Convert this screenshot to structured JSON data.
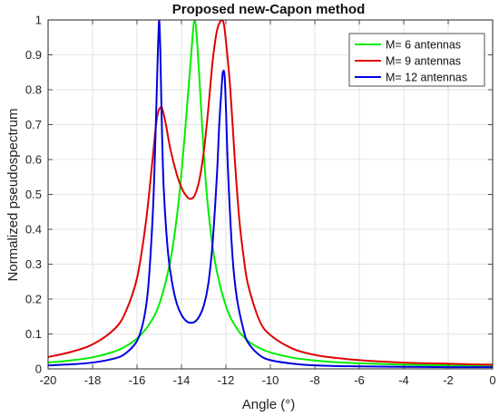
{
  "chart_data": {
    "type": "line",
    "title": "Proposed new-Capon method",
    "xlabel": "Angle (°)",
    "ylabel": "Normalized pseudospectrum",
    "xlim": [
      -20,
      0
    ],
    "ylim": [
      0,
      1
    ],
    "xticks": [
      -20,
      -18,
      -16,
      -14,
      -12,
      -10,
      -8,
      -6,
      -4,
      -2,
      0
    ],
    "yticks": [
      0,
      0.1,
      0.2,
      0.3,
      0.4,
      0.5,
      0.6,
      0.7,
      0.8,
      0.9,
      1
    ],
    "xtick_labels": [
      "-20",
      "-18",
      "-16",
      "-14",
      "-12",
      "-10",
      "-8",
      "-6",
      "-4",
      "-2",
      "0"
    ],
    "ytick_labels": [
      "0",
      "0.1",
      "0.2",
      "0.3",
      "0.4",
      "0.5",
      "0.6",
      "0.7",
      "0.8",
      "0.9",
      "1"
    ],
    "grid": true,
    "legend_position": "top-right",
    "series": [
      {
        "name": "M= 6 antennas",
        "color": "#00ee00",
        "x": [
          -20,
          -19,
          -18,
          -17,
          -16.5,
          -16,
          -15.5,
          -15,
          -14.5,
          -14.2,
          -14,
          -13.8,
          -13.6,
          -13.4,
          -13.2,
          -13,
          -12.8,
          -12.5,
          -12,
          -11.5,
          -11,
          -10.5,
          -10,
          -9,
          -8,
          -7,
          -6,
          -5,
          -4,
          -3,
          -2,
          -1,
          0
        ],
        "values": [
          0.018,
          0.024,
          0.033,
          0.05,
          0.065,
          0.087,
          0.123,
          0.185,
          0.31,
          0.44,
          0.56,
          0.71,
          0.87,
          1.0,
          0.84,
          0.62,
          0.46,
          0.31,
          0.18,
          0.115,
          0.08,
          0.06,
          0.047,
          0.032,
          0.024,
          0.019,
          0.016,
          0.014,
          0.012,
          0.011,
          0.01,
          0.009,
          0.008
        ]
      },
      {
        "name": "M= 9 antennas",
        "color": "#e00000",
        "x": [
          -20,
          -19,
          -18,
          -17,
          -16.5,
          -16,
          -15.6,
          -15.3,
          -15.1,
          -14.9,
          -14.7,
          -14.5,
          -14.2,
          -14,
          -13.8,
          -13.6,
          -13.4,
          -13.2,
          -13,
          -12.8,
          -12.6,
          -12.4,
          -12.2,
          -12.1,
          -12,
          -11.8,
          -11.6,
          -11.4,
          -11.2,
          -11,
          -10.5,
          -10,
          -9,
          -8,
          -7,
          -6,
          -5,
          -4,
          -3,
          -2,
          -1,
          0
        ],
        "values": [
          0.034,
          0.048,
          0.07,
          0.115,
          0.165,
          0.26,
          0.42,
          0.6,
          0.72,
          0.75,
          0.7,
          0.63,
          0.555,
          0.52,
          0.497,
          0.487,
          0.498,
          0.54,
          0.62,
          0.74,
          0.88,
          0.97,
          1.0,
          0.99,
          0.94,
          0.8,
          0.6,
          0.43,
          0.32,
          0.24,
          0.14,
          0.097,
          0.058,
          0.04,
          0.031,
          0.025,
          0.021,
          0.018,
          0.016,
          0.015,
          0.013,
          0.012
        ]
      },
      {
        "name": "M= 12 antennas",
        "color": "#0000e0",
        "x": [
          -20,
          -19,
          -18,
          -17,
          -16.5,
          -16,
          -15.7,
          -15.5,
          -15.3,
          -15.2,
          -15.1,
          -15.05,
          -15,
          -14.95,
          -14.9,
          -14.8,
          -14.6,
          -14.4,
          -14.2,
          -14,
          -13.8,
          -13.6,
          -13.4,
          -13.2,
          -13,
          -12.8,
          -12.6,
          -12.4,
          -12.3,
          -12.2,
          -12.15,
          -12.1,
          -12.05,
          -12,
          -11.9,
          -11.7,
          -11.5,
          -11.2,
          -11,
          -10.5,
          -10,
          -9,
          -8,
          -6,
          -4,
          -2,
          0
        ],
        "values": [
          0.01,
          0.013,
          0.018,
          0.03,
          0.045,
          0.08,
          0.14,
          0.23,
          0.43,
          0.6,
          0.82,
          0.93,
          1.0,
          0.91,
          0.75,
          0.52,
          0.33,
          0.24,
          0.185,
          0.155,
          0.138,
          0.132,
          0.135,
          0.15,
          0.18,
          0.24,
          0.36,
          0.56,
          0.7,
          0.8,
          0.845,
          0.855,
          0.83,
          0.75,
          0.56,
          0.32,
          0.2,
          0.11,
          0.075,
          0.04,
          0.025,
          0.015,
          0.01,
          0.007,
          0.006,
          0.005,
          0.005
        ]
      }
    ]
  }
}
